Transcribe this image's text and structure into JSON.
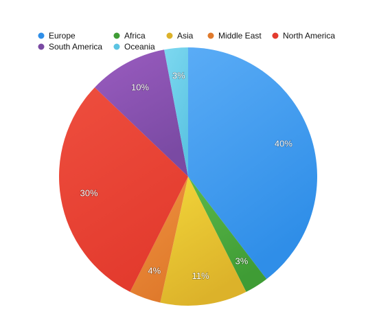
{
  "chart_data": {
    "type": "pie",
    "title": "",
    "start": "top",
    "direction": "clockwise",
    "slices": [
      {
        "label": "Europe",
        "value": 40,
        "display": "40%",
        "color": "#2f8ee8",
        "highlight": "#5aacf6"
      },
      {
        "label": "Africa",
        "value": 3,
        "display": "3%",
        "color": "#3f9c35",
        "highlight": "#5cb84a"
      },
      {
        "label": "Asia",
        "value": 11,
        "display": "11%",
        "color": "#dcb22a",
        "highlight": "#f2d63a"
      },
      {
        "label": "Middle East",
        "value": 4,
        "display": "4%",
        "color": "#e07a2c",
        "highlight": "#ef9340"
      },
      {
        "label": "North America",
        "value": 30,
        "display": "30%",
        "color": "#e33b2e",
        "highlight": "#ee4e3e"
      },
      {
        "label": "South America",
        "value": 10,
        "display": "10%",
        "color": "#7a4aa3",
        "highlight": "#9a5cc0"
      },
      {
        "label": "Oceania",
        "value": 3,
        "display": "3%",
        "color": "#5cc4e2",
        "highlight": "#7dd8f0"
      }
    ],
    "legend": {
      "placement": "top",
      "rows": [
        [
          "Europe",
          "Africa",
          "Asia",
          "Middle East",
          "North America"
        ],
        [
          "South America",
          "Oceania"
        ]
      ]
    }
  }
}
